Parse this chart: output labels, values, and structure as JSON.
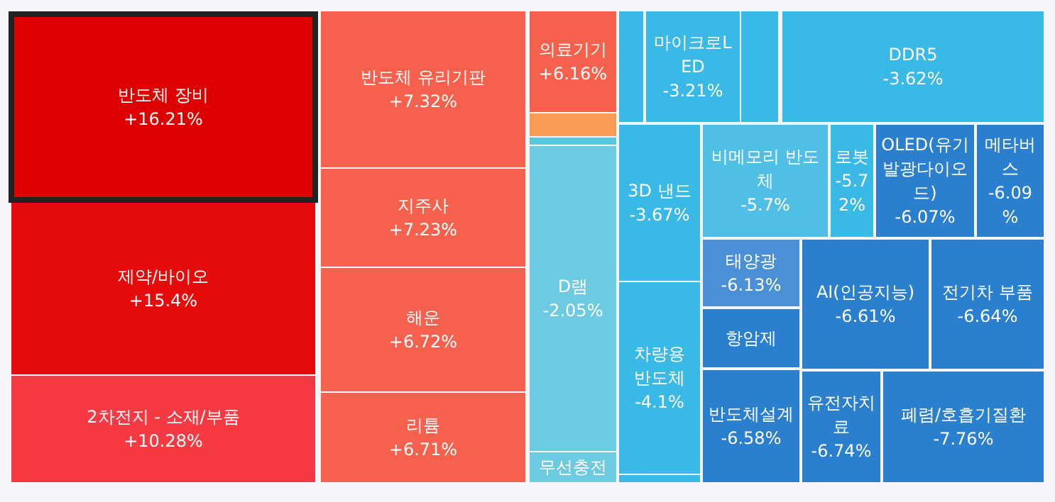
{
  "chart_data": {
    "type": "other",
    "categories": [
      "반도체 장비",
      "제약/바이오",
      "2차전지 - 소재/부품",
      "반도체 유리기판",
      "지주사",
      "해운",
      "리튬",
      "의료기기",
      null,
      null,
      "D램",
      "무선충전",
      null,
      "마이크로LED",
      null,
      "DDR5",
      "3D 낸드",
      "차량용 반도체",
      null,
      "비메모리 반도체",
      "로봇",
      "OLED(유기발광다이오드)",
      "메타버스",
      "태양광",
      "항암제",
      "반도체설계",
      "AI(인공지능)",
      "전기차 부품",
      "유전자치료",
      "폐렴/호흡기질환"
    ],
    "values": [
      16.21,
      15.4,
      10.28,
      7.32,
      7.23,
      6.72,
      6.71,
      6.16,
      null,
      null,
      -2.05,
      null,
      null,
      -3.21,
      null,
      -3.62,
      -3.67,
      -4.1,
      null,
      -5.7,
      -5.72,
      -6.07,
      -6.09,
      -6.13,
      null,
      -6.58,
      -6.61,
      -6.64,
      -6.74,
      -7.76
    ],
    "value_labels": [
      "+16.21%",
      "+15.4%",
      "+10.28%",
      "+7.32%",
      "+7.23%",
      "+6.72%",
      "+6.71%",
      "+6.16%",
      null,
      null,
      "-2.05%",
      null,
      null,
      "-3.21%",
      null,
      "-3.62%",
      "-3.67%",
      "-4.1%",
      null,
      "-5.7%",
      "-5.72%",
      "-6.07%",
      "-6.09%",
      "-6.13%",
      null,
      "-6.58%",
      "-6.61%",
      "-6.64%",
      "-6.74%",
      "-7.76%"
    ],
    "colors": [
      "#dd0000",
      "#e60b0b",
      "#f53a44",
      "#f5614d",
      "#f5614d",
      "#f5614d",
      "#f5614d",
      "#f5614d",
      "#fb9a55",
      "#5cc5de",
      "#6ccbe0",
      "#6ccbe0",
      "#3ab8e6",
      "#3ab8e6",
      "#3ab8e6",
      "#3ab8e6",
      "#3ab8e6",
      "#3ab8e6",
      "#3ab8e6",
      "#50bfe6",
      "#3ab8e6",
      "#2a7fcf",
      "#2a7fcf",
      "#4a90d6",
      "#2a7fcf",
      "#2a7fcf",
      "#2a7fcf",
      "#2a7fcf",
      "#2a7fcf",
      "#2a7fcf"
    ]
  }
}
